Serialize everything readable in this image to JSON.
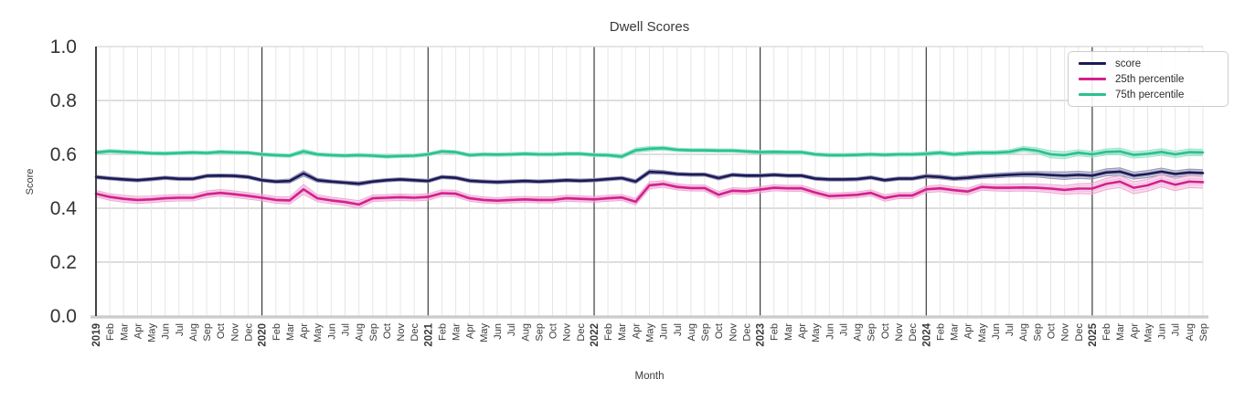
{
  "chart_data": {
    "type": "line",
    "title": "Dwell Scores",
    "xlabel": "Month",
    "ylabel": "Score",
    "ylim": [
      0,
      1
    ],
    "y_ticks": [
      0,
      0.2,
      0.4,
      0.6,
      0.8,
      1
    ],
    "grid": {
      "vertical": "monthly",
      "year_boundary_lines": true,
      "horizontal_ticks": [
        0.2,
        0.4,
        0.6,
        0.8
      ]
    },
    "legend_position": "upper right",
    "categories": [
      "2019",
      "Feb",
      "Mar",
      "Apr",
      "May",
      "Jun",
      "Jul",
      "Aug",
      "Sep",
      "Oct",
      "Nov",
      "Dec",
      "2020",
      "Feb",
      "Mar",
      "Apr",
      "May",
      "Jun",
      "Jul",
      "Aug",
      "Sep",
      "Oct",
      "Nov",
      "Dec",
      "2021",
      "Feb",
      "Mar",
      "Apr",
      "May",
      "Jun",
      "Jul",
      "Aug",
      "Sep",
      "Oct",
      "Nov",
      "Dec",
      "2022",
      "Feb",
      "Mar",
      "Apr",
      "May",
      "Jun",
      "Jul",
      "Aug",
      "Sep",
      "Oct",
      "Nov",
      "Dec",
      "2023",
      "Feb",
      "Mar",
      "Apr",
      "May",
      "Jun",
      "Jul",
      "Aug",
      "Sep",
      "Oct",
      "Nov",
      "Dec",
      "2024",
      "Feb",
      "Mar",
      "Apr",
      "May",
      "Jun",
      "Jul",
      "Aug",
      "Sep",
      "Oct",
      "Nov",
      "Dec",
      "2025",
      "Feb",
      "Mar",
      "Apr",
      "May",
      "Jun",
      "Jul",
      "Aug",
      "Sep"
    ],
    "series": [
      {
        "name": "score",
        "color": "#1b1a55",
        "band_color": "#8d8cb0",
        "values": [
          0.516,
          0.511,
          0.507,
          0.504,
          0.508,
          0.513,
          0.509,
          0.509,
          0.52,
          0.521,
          0.52,
          0.516,
          0.504,
          0.499,
          0.501,
          0.529,
          0.504,
          0.499,
          0.495,
          0.491,
          0.499,
          0.504,
          0.507,
          0.504,
          0.501,
          0.516,
          0.513,
          0.502,
          0.499,
          0.497,
          0.499,
          0.501,
          0.499,
          0.501,
          0.504,
          0.502,
          0.504,
          0.508,
          0.512,
          0.499,
          0.535,
          0.533,
          0.527,
          0.525,
          0.525,
          0.512,
          0.524,
          0.521,
          0.521,
          0.524,
          0.521,
          0.521,
          0.51,
          0.507,
          0.507,
          0.508,
          0.514,
          0.504,
          0.51,
          0.51,
          0.519,
          0.516,
          0.51,
          0.513,
          0.518,
          0.521,
          0.524,
          0.526,
          0.526,
          0.523,
          0.521,
          0.524,
          0.521,
          0.533,
          0.536,
          0.521,
          0.527,
          0.536,
          0.527,
          0.533,
          0.531
        ],
        "band_halfwidth": [
          0.006,
          0.006,
          0.006,
          0.006,
          0.006,
          0.006,
          0.006,
          0.006,
          0.006,
          0.006,
          0.006,
          0.006,
          0.006,
          0.006,
          0.007,
          0.01,
          0.007,
          0.006,
          0.006,
          0.007,
          0.006,
          0.006,
          0.006,
          0.006,
          0.006,
          0.006,
          0.006,
          0.006,
          0.006,
          0.006,
          0.006,
          0.006,
          0.006,
          0.006,
          0.006,
          0.006,
          0.006,
          0.006,
          0.006,
          0.007,
          0.008,
          0.007,
          0.006,
          0.006,
          0.006,
          0.007,
          0.006,
          0.006,
          0.006,
          0.006,
          0.006,
          0.006,
          0.006,
          0.006,
          0.006,
          0.006,
          0.006,
          0.006,
          0.006,
          0.006,
          0.007,
          0.007,
          0.007,
          0.007,
          0.007,
          0.008,
          0.008,
          0.009,
          0.01,
          0.012,
          0.014,
          0.013,
          0.013,
          0.013,
          0.014,
          0.013,
          0.013,
          0.013,
          0.012,
          0.012,
          0.012
        ]
      },
      {
        "name": "25th percentile",
        "color": "#d2218e",
        "band_color": "#f0a3d2",
        "values": [
          0.454,
          0.442,
          0.435,
          0.431,
          0.433,
          0.437,
          0.439,
          0.439,
          0.452,
          0.457,
          0.452,
          0.446,
          0.439,
          0.431,
          0.429,
          0.47,
          0.437,
          0.429,
          0.423,
          0.414,
          0.437,
          0.439,
          0.441,
          0.439,
          0.442,
          0.456,
          0.454,
          0.437,
          0.431,
          0.428,
          0.431,
          0.433,
          0.431,
          0.431,
          0.437,
          0.435,
          0.433,
          0.437,
          0.44,
          0.424,
          0.485,
          0.49,
          0.479,
          0.475,
          0.475,
          0.45,
          0.465,
          0.463,
          0.469,
          0.476,
          0.474,
          0.474,
          0.458,
          0.445,
          0.447,
          0.45,
          0.457,
          0.438,
          0.447,
          0.447,
          0.47,
          0.474,
          0.467,
          0.462,
          0.479,
          0.476,
          0.476,
          0.477,
          0.476,
          0.473,
          0.468,
          0.473,
          0.473,
          0.49,
          0.499,
          0.476,
          0.485,
          0.502,
          0.487,
          0.499,
          0.497
        ],
        "band_halfwidth": [
          0.012,
          0.012,
          0.013,
          0.013,
          0.012,
          0.012,
          0.012,
          0.012,
          0.012,
          0.012,
          0.012,
          0.012,
          0.012,
          0.012,
          0.013,
          0.018,
          0.013,
          0.012,
          0.012,
          0.014,
          0.012,
          0.012,
          0.012,
          0.012,
          0.012,
          0.012,
          0.012,
          0.011,
          0.011,
          0.011,
          0.011,
          0.011,
          0.011,
          0.011,
          0.011,
          0.011,
          0.011,
          0.011,
          0.011,
          0.012,
          0.013,
          0.012,
          0.011,
          0.011,
          0.011,
          0.012,
          0.011,
          0.011,
          0.011,
          0.011,
          0.011,
          0.011,
          0.011,
          0.011,
          0.011,
          0.011,
          0.011,
          0.012,
          0.011,
          0.011,
          0.012,
          0.012,
          0.012,
          0.012,
          0.012,
          0.012,
          0.013,
          0.013,
          0.014,
          0.015,
          0.016,
          0.018,
          0.02,
          0.021,
          0.022,
          0.022,
          0.022,
          0.022,
          0.022,
          0.022,
          0.022
        ]
      },
      {
        "name": "75th percentile",
        "color": "#2bc18f",
        "band_color": "#94e2c6",
        "values": [
          0.607,
          0.612,
          0.609,
          0.607,
          0.604,
          0.603,
          0.605,
          0.607,
          0.605,
          0.609,
          0.607,
          0.606,
          0.6,
          0.597,
          0.595,
          0.611,
          0.6,
          0.597,
          0.595,
          0.597,
          0.595,
          0.592,
          0.594,
          0.595,
          0.6,
          0.611,
          0.608,
          0.597,
          0.6,
          0.599,
          0.6,
          0.602,
          0.6,
          0.6,
          0.602,
          0.602,
          0.598,
          0.597,
          0.592,
          0.615,
          0.621,
          0.623,
          0.617,
          0.615,
          0.615,
          0.614,
          0.614,
          0.611,
          0.608,
          0.609,
          0.608,
          0.608,
          0.6,
          0.597,
          0.597,
          0.598,
          0.6,
          0.598,
          0.6,
          0.6,
          0.602,
          0.606,
          0.6,
          0.604,
          0.606,
          0.606,
          0.609,
          0.62,
          0.614,
          0.6,
          0.597,
          0.606,
          0.6,
          0.609,
          0.611,
          0.598,
          0.602,
          0.609,
          0.6,
          0.608,
          0.607
        ],
        "band_halfwidth": [
          0.006,
          0.006,
          0.006,
          0.006,
          0.006,
          0.006,
          0.006,
          0.006,
          0.006,
          0.006,
          0.006,
          0.006,
          0.006,
          0.006,
          0.006,
          0.008,
          0.006,
          0.006,
          0.006,
          0.006,
          0.006,
          0.006,
          0.006,
          0.006,
          0.006,
          0.006,
          0.006,
          0.006,
          0.006,
          0.006,
          0.006,
          0.006,
          0.006,
          0.006,
          0.006,
          0.006,
          0.006,
          0.006,
          0.007,
          0.008,
          0.008,
          0.007,
          0.006,
          0.006,
          0.006,
          0.006,
          0.006,
          0.006,
          0.006,
          0.006,
          0.006,
          0.006,
          0.006,
          0.006,
          0.006,
          0.006,
          0.006,
          0.006,
          0.006,
          0.006,
          0.007,
          0.007,
          0.007,
          0.007,
          0.007,
          0.007,
          0.008,
          0.009,
          0.01,
          0.013,
          0.013,
          0.011,
          0.011,
          0.011,
          0.012,
          0.012,
          0.012,
          0.012,
          0.012,
          0.012,
          0.012
        ]
      }
    ]
  }
}
